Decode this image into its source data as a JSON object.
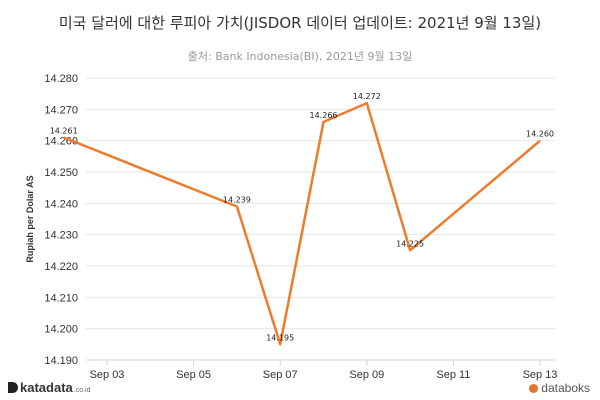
{
  "chart_data": {
    "type": "line",
    "title": "미국 달러에 대한 루피아 가치(JISDOR 데이터 업데이트: 2021년 9월 13일)",
    "subtitle": "출처: Bank Indonesia(BI), 2021년 9월 13일",
    "ylabel": "Rupiah per Dolar AS",
    "xlabel": "",
    "x": [
      "2021-09-02",
      "2021-09-06",
      "2021-09-07",
      "2021-09-08",
      "2021-09-09",
      "2021-09-10",
      "2021-09-13"
    ],
    "values": [
      14.261,
      14.239,
      14.195,
      14.266,
      14.272,
      14.225,
      14.26
    ],
    "value_labels": [
      "14.261",
      "14.239",
      "14.195",
      "14.266",
      "14.272",
      "14.225",
      "14.260"
    ],
    "x_tick_dates": [
      "2021-09-03",
      "2021-09-05",
      "2021-09-07",
      "2021-09-09",
      "2021-09-11",
      "2021-09-13"
    ],
    "x_tick_labels": [
      "Sep 03",
      "Sep 05",
      "Sep 07",
      "Sep 09",
      "Sep 11",
      "Sep 13"
    ],
    "y_ticks": [
      14.19,
      14.2,
      14.21,
      14.22,
      14.23,
      14.24,
      14.25,
      14.26,
      14.27,
      14.28
    ],
    "y_tick_labels": [
      "14.190",
      "14.200",
      "14.210",
      "14.220",
      "14.230",
      "14.240",
      "14.250",
      "14.260",
      "14.270",
      "14.280"
    ],
    "ylim": [
      14.19,
      14.28
    ],
    "grid": "horizontal",
    "line_color": "#ef7b2d"
  },
  "footer": {
    "brand_left": "katadata",
    "brand_left_domain": ".co.id",
    "brand_right": "databoks"
  }
}
